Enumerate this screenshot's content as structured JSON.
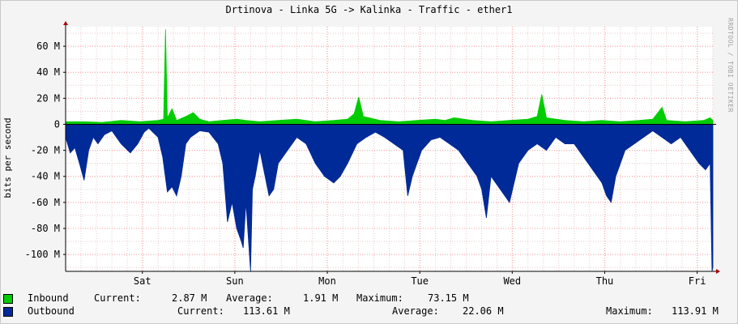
{
  "title": "Drtinova - Linka 5G -> Kalinka  - Traffic - ether1",
  "watermark": "RRDTOOL / TOBI OETIKER",
  "chart_data": {
    "type": "area",
    "ylabel": "bits per second",
    "ylim": [
      -113,
      75
    ],
    "yticks": [
      60,
      40,
      20,
      0,
      -20,
      -40,
      -60,
      -80,
      -100
    ],
    "ytick_labels": [
      "60 M",
      "40 M",
      "20 M",
      "0",
      "-20 M",
      "-40 M",
      "-60 M",
      "-80 M",
      "-100 M"
    ],
    "xlim": [
      0,
      7
    ],
    "x_ticks": [
      {
        "x": 0.83,
        "label": "Sat"
      },
      {
        "x": 1.83,
        "label": "Sun"
      },
      {
        "x": 2.83,
        "label": "Mon"
      },
      {
        "x": 3.83,
        "label": "Tue"
      },
      {
        "x": 4.83,
        "label": "Wed"
      },
      {
        "x": 5.83,
        "label": "Thu"
      },
      {
        "x": 6.83,
        "label": "Fri"
      }
    ],
    "grid": true,
    "series": [
      {
        "name": "Inbound",
        "color": "#00cc00",
        "points": [
          [
            0,
            2
          ],
          [
            0.2,
            2
          ],
          [
            0.4,
            1.5
          ],
          [
            0.6,
            3
          ],
          [
            0.8,
            2
          ],
          [
            1.0,
            3
          ],
          [
            1.06,
            4
          ],
          [
            1.08,
            73
          ],
          [
            1.1,
            5
          ],
          [
            1.15,
            12
          ],
          [
            1.2,
            3
          ],
          [
            1.3,
            6
          ],
          [
            1.38,
            9
          ],
          [
            1.45,
            4
          ],
          [
            1.55,
            2
          ],
          [
            1.7,
            3
          ],
          [
            1.85,
            4
          ],
          [
            1.95,
            3
          ],
          [
            2.1,
            2
          ],
          [
            2.3,
            3
          ],
          [
            2.5,
            4
          ],
          [
            2.7,
            2
          ],
          [
            2.9,
            3
          ],
          [
            3.05,
            4
          ],
          [
            3.12,
            8
          ],
          [
            3.17,
            21
          ],
          [
            3.22,
            6
          ],
          [
            3.4,
            3
          ],
          [
            3.6,
            2
          ],
          [
            3.8,
            3
          ],
          [
            4.0,
            4
          ],
          [
            4.1,
            3
          ],
          [
            4.2,
            5
          ],
          [
            4.4,
            3
          ],
          [
            4.6,
            2
          ],
          [
            4.8,
            3
          ],
          [
            5.0,
            4
          ],
          [
            5.1,
            6
          ],
          [
            5.15,
            23
          ],
          [
            5.2,
            5
          ],
          [
            5.4,
            3
          ],
          [
            5.6,
            2
          ],
          [
            5.8,
            3
          ],
          [
            6.0,
            2
          ],
          [
            6.2,
            3
          ],
          [
            6.35,
            4
          ],
          [
            6.45,
            13
          ],
          [
            6.5,
            3
          ],
          [
            6.7,
            2
          ],
          [
            6.9,
            3
          ],
          [
            6.97,
            5
          ],
          [
            7.0,
            3
          ]
        ]
      },
      {
        "name": "Outbound",
        "color": "#002a97",
        "points": [
          [
            0,
            -10
          ],
          [
            0.05,
            -22
          ],
          [
            0.1,
            -18
          ],
          [
            0.15,
            -30
          ],
          [
            0.2,
            -43
          ],
          [
            0.25,
            -20
          ],
          [
            0.3,
            -10
          ],
          [
            0.35,
            -15
          ],
          [
            0.42,
            -8
          ],
          [
            0.5,
            -5
          ],
          [
            0.6,
            -15
          ],
          [
            0.7,
            -22
          ],
          [
            0.78,
            -15
          ],
          [
            0.85,
            -6
          ],
          [
            0.9,
            -3
          ],
          [
            1.0,
            -10
          ],
          [
            1.05,
            -25
          ],
          [
            1.1,
            -52
          ],
          [
            1.15,
            -48
          ],
          [
            1.2,
            -55
          ],
          [
            1.25,
            -40
          ],
          [
            1.3,
            -15
          ],
          [
            1.35,
            -10
          ],
          [
            1.45,
            -5
          ],
          [
            1.55,
            -6
          ],
          [
            1.65,
            -15
          ],
          [
            1.7,
            -30
          ],
          [
            1.75,
            -75
          ],
          [
            1.8,
            -60
          ],
          [
            1.85,
            -80
          ],
          [
            1.9,
            -90
          ],
          [
            1.92,
            -95
          ],
          [
            1.95,
            -60
          ],
          [
            2.0,
            -113
          ],
          [
            2.02,
            -50
          ],
          [
            2.05,
            -40
          ],
          [
            2.1,
            -20
          ],
          [
            2.2,
            -55
          ],
          [
            2.25,
            -50
          ],
          [
            2.3,
            -30
          ],
          [
            2.4,
            -20
          ],
          [
            2.5,
            -10
          ],
          [
            2.6,
            -15
          ],
          [
            2.7,
            -30
          ],
          [
            2.8,
            -40
          ],
          [
            2.9,
            -45
          ],
          [
            2.97,
            -40
          ],
          [
            3.05,
            -30
          ],
          [
            3.15,
            -15
          ],
          [
            3.25,
            -10
          ],
          [
            3.35,
            -6
          ],
          [
            3.45,
            -10
          ],
          [
            3.55,
            -15
          ],
          [
            3.65,
            -20
          ],
          [
            3.7,
            -55
          ],
          [
            3.75,
            -40
          ],
          [
            3.8,
            -30
          ],
          [
            3.85,
            -20
          ],
          [
            3.95,
            -12
          ],
          [
            4.05,
            -10
          ],
          [
            4.15,
            -15
          ],
          [
            4.25,
            -20
          ],
          [
            4.35,
            -30
          ],
          [
            4.45,
            -40
          ],
          [
            4.5,
            -50
          ],
          [
            4.55,
            -72
          ],
          [
            4.6,
            -40
          ],
          [
            4.7,
            -50
          ],
          [
            4.8,
            -60
          ],
          [
            4.85,
            -45
          ],
          [
            4.9,
            -30
          ],
          [
            5.0,
            -20
          ],
          [
            5.1,
            -15
          ],
          [
            5.2,
            -20
          ],
          [
            5.3,
            -10
          ],
          [
            5.4,
            -15
          ],
          [
            5.5,
            -15
          ],
          [
            5.6,
            -25
          ],
          [
            5.7,
            -35
          ],
          [
            5.8,
            -45
          ],
          [
            5.85,
            -55
          ],
          [
            5.9,
            -60
          ],
          [
            5.95,
            -40
          ],
          [
            6.0,
            -30
          ],
          [
            6.05,
            -20
          ],
          [
            6.15,
            -15
          ],
          [
            6.25,
            -10
          ],
          [
            6.35,
            -5
          ],
          [
            6.45,
            -10
          ],
          [
            6.55,
            -15
          ],
          [
            6.65,
            -10
          ],
          [
            6.75,
            -20
          ],
          [
            6.85,
            -30
          ],
          [
            6.92,
            -35
          ],
          [
            6.97,
            -30
          ],
          [
            6.99,
            -113
          ],
          [
            7.0,
            -110
          ]
        ]
      }
    ]
  },
  "legend": {
    "inbound": {
      "label": "Inbound",
      "current_label": "Current:",
      "current": "2.87 M",
      "average_label": "Average:",
      "average": "1.91 M",
      "maximum_label": "Maximum:",
      "maximum": "73.15 M"
    },
    "outbound": {
      "label": "Outbound",
      "current_label": "Current:",
      "current": "113.61 M",
      "average_label": "Average:",
      "average": "22.06 M",
      "maximum_label": "Maximum:",
      "maximum": "113.91 M"
    }
  }
}
